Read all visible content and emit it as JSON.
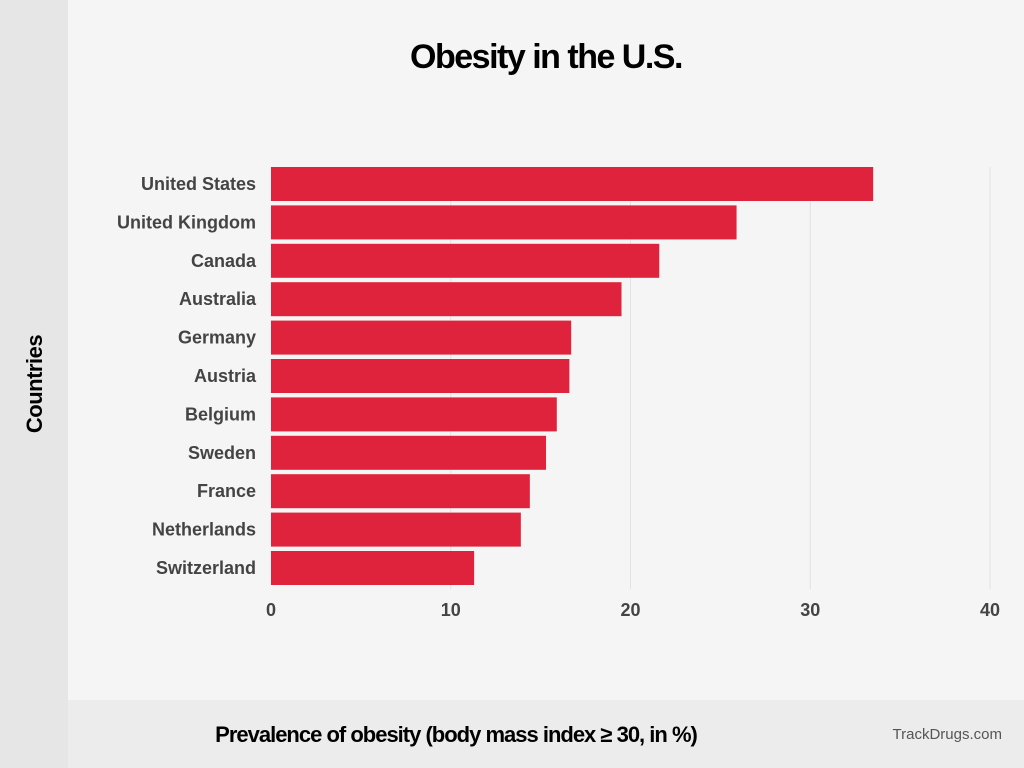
{
  "chart_data": {
    "type": "bar",
    "orientation": "horizontal",
    "title": "Obesity in the U.S.",
    "xlabel": "Prevalence of obesity (body mass index ≥ 30, in %)",
    "ylabel": "Countries",
    "categories": [
      "United States",
      "United Kingdom",
      "Canada",
      "Australia",
      "Germany",
      "Austria",
      "Belgium",
      "Sweden",
      "France",
      "Netherlands",
      "Switzerland"
    ],
    "values": [
      33.5,
      25.9,
      21.6,
      19.5,
      16.7,
      16.6,
      15.9,
      15.3,
      14.4,
      13.9,
      11.3
    ],
    "xlim": [
      0,
      40
    ],
    "xticks": [
      "0",
      "10",
      "20",
      "30",
      "40"
    ],
    "grid": true,
    "bar_color": "#e0233c"
  },
  "source": "TrackDrugs.com"
}
